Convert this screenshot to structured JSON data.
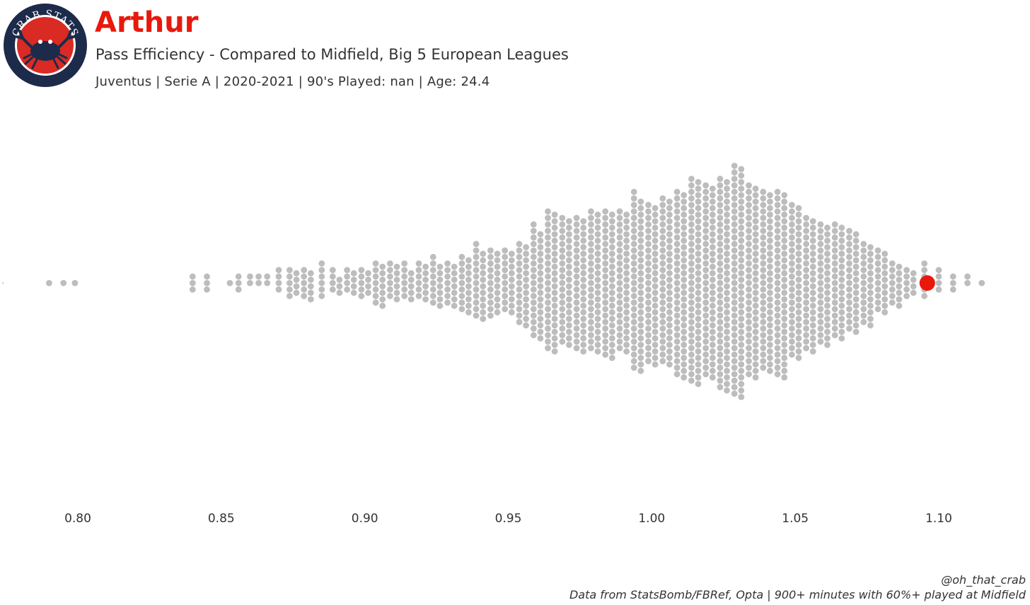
{
  "header": {
    "logo_text": "CRAB STATS",
    "title": "Arthur",
    "subtitle": "Pass Efficiency - Compared to Midfield, Big 5 European Leagues",
    "meta": "Juventus  | Serie A | 2020-2021 | 90's Played: nan | Age: 24.4"
  },
  "footer": {
    "handle": "@oh_that_crab",
    "source": "Data from StatsBomb/FBRef, Opta | 900+ minutes with 60%+ played at Midfield"
  },
  "colors": {
    "title": "#e8190c",
    "highlight": "#e8190c",
    "dots": "#bdbdbd",
    "logo_ring": "#1c2b4a",
    "logo_inner": "#d92a24"
  },
  "chart_data": {
    "type": "scatter",
    "style": "beeswarm",
    "xlim": [
      0.775,
      1.12
    ],
    "ticks": [
      "0.80",
      "0.85",
      "0.90",
      "0.95",
      "1.00",
      "1.05",
      "1.10"
    ],
    "tick_values": [
      0.8,
      0.85,
      0.9,
      0.95,
      1.0,
      1.05,
      1.1
    ],
    "highlight": {
      "name": "Arthur",
      "value": 1.096
    },
    "density": [
      [
        0.79,
        1
      ],
      [
        0.795,
        1
      ],
      [
        0.799,
        1
      ],
      [
        0.84,
        3
      ],
      [
        0.845,
        3
      ],
      [
        0.853,
        1
      ],
      [
        0.856,
        3
      ],
      [
        0.86,
        2
      ],
      [
        0.863,
        2
      ],
      [
        0.866,
        2
      ],
      [
        0.87,
        4
      ],
      [
        0.875,
        9
      ],
      [
        0.88,
        10
      ],
      [
        0.885,
        6
      ],
      [
        0.89,
        7
      ],
      [
        0.895,
        8
      ],
      [
        0.9,
        9
      ],
      [
        0.905,
        14
      ],
      [
        0.91,
        12
      ],
      [
        0.915,
        11
      ],
      [
        0.92,
        12
      ],
      [
        0.925,
        15
      ],
      [
        0.93,
        14
      ],
      [
        0.935,
        18
      ],
      [
        0.94,
        23
      ],
      [
        0.945,
        21
      ],
      [
        0.95,
        20
      ],
      [
        0.955,
        26
      ],
      [
        0.96,
        35
      ],
      [
        0.965,
        44
      ],
      [
        0.97,
        40
      ],
      [
        0.975,
        42
      ],
      [
        0.98,
        44
      ],
      [
        0.985,
        46
      ],
      [
        0.99,
        44
      ],
      [
        0.995,
        55
      ],
      [
        1.0,
        50
      ],
      [
        1.005,
        52
      ],
      [
        1.01,
        58
      ],
      [
        1.015,
        64
      ],
      [
        1.02,
        60
      ],
      [
        1.025,
        66
      ],
      [
        1.03,
        72
      ],
      [
        1.035,
        60
      ],
      [
        1.04,
        56
      ],
      [
        1.045,
        58
      ],
      [
        1.05,
        48
      ],
      [
        1.055,
        42
      ],
      [
        1.06,
        38
      ],
      [
        1.065,
        36
      ],
      [
        1.07,
        32
      ],
      [
        1.075,
        26
      ],
      [
        1.08,
        20
      ],
      [
        1.085,
        14
      ],
      [
        1.09,
        9
      ],
      [
        1.095,
        6
      ],
      [
        1.1,
        4
      ],
      [
        1.105,
        3
      ],
      [
        1.11,
        2
      ],
      [
        1.115,
        1
      ]
    ]
  }
}
